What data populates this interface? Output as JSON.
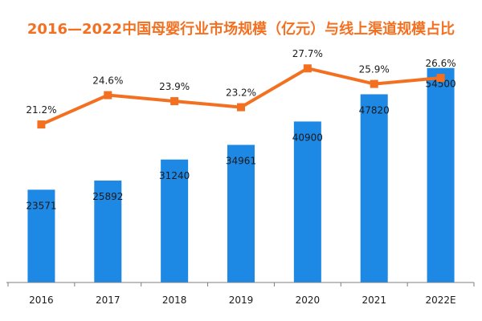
{
  "chart_data": {
    "type": "bar",
    "title": "2016—2022中国母婴行业市场规模（亿元）与线上渠道规模占比",
    "categories": [
      "2016",
      "2017",
      "2018",
      "2019",
      "2020",
      "2021",
      "2022E"
    ],
    "series": [
      {
        "type": "bar",
        "values": [
          23571,
          25892,
          31240,
          34961,
          40900,
          47820,
          54500
        ],
        "color": "#1e88e5"
      },
      {
        "type": "line",
        "values": [
          21.2,
          24.6,
          23.9,
          23.2,
          27.7,
          25.9,
          26.6
        ],
        "labels": [
          "21.2%",
          "24.6%",
          "23.9%",
          "23.2%",
          "27.7%",
          "25.9%",
          "26.6%"
        ],
        "unit": "%",
        "color": "#f37021"
      }
    ],
    "bar_axis": {
      "ylim": [
        0,
        57500
      ]
    },
    "line_axis": {
      "ylim": [
        0,
        31
      ]
    },
    "grid": false,
    "legend": "none"
  }
}
